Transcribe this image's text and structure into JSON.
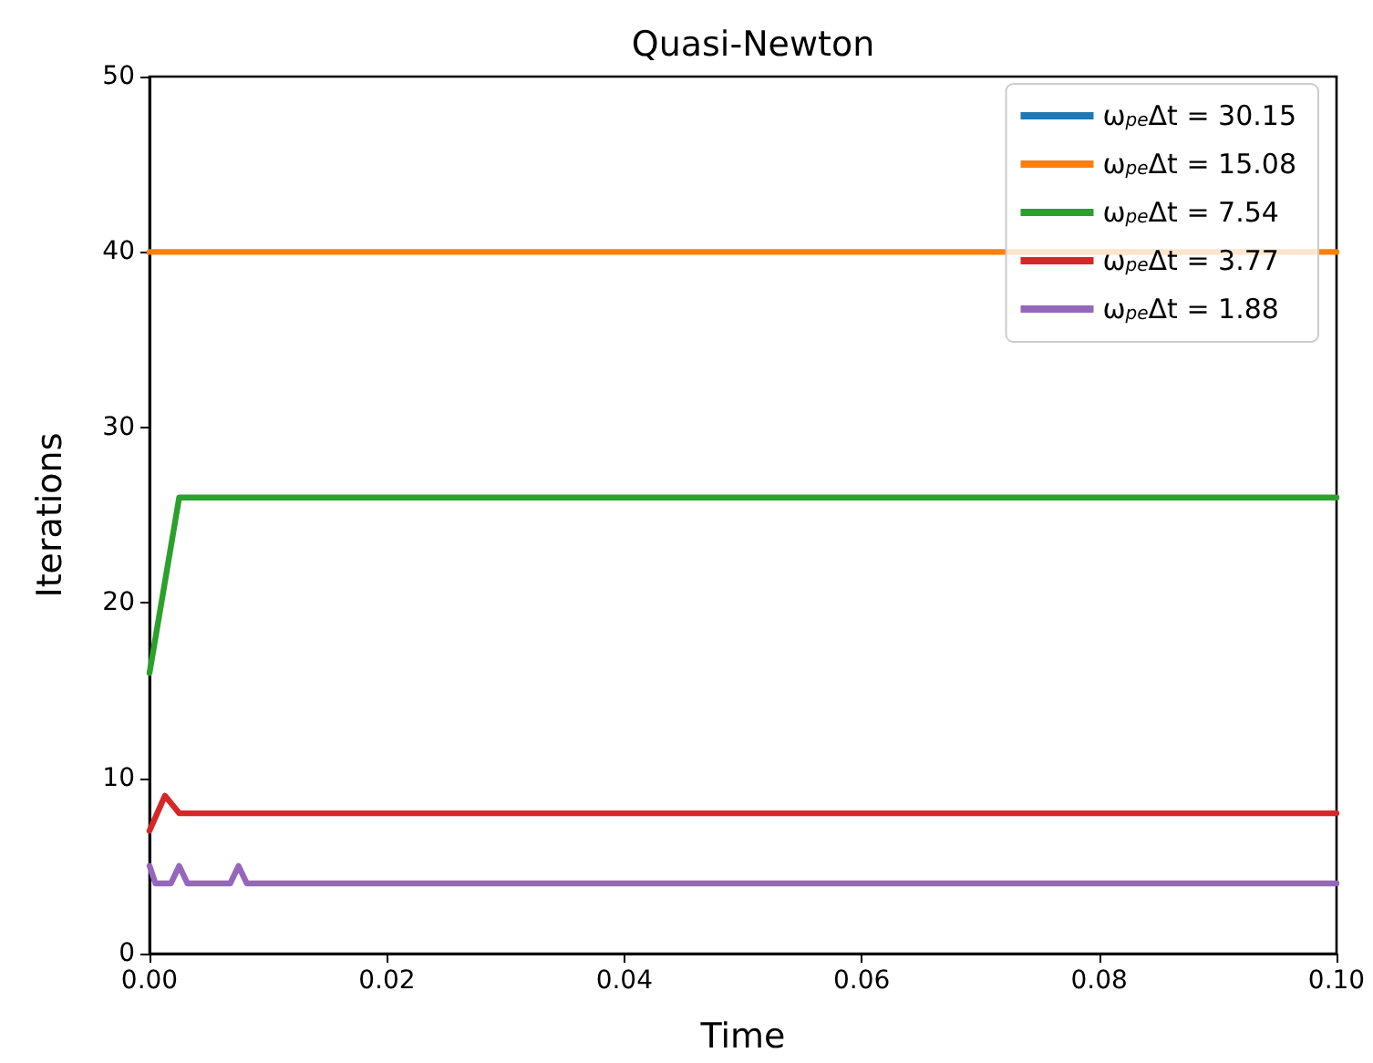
{
  "chart_data": {
    "type": "line",
    "title": "Quasi-Newton",
    "xlabel": "Time",
    "ylabel": "Iterations",
    "xlim": [
      0,
      0.1
    ],
    "xticks": [
      {
        "value": 0,
        "label": "0.00"
      },
      {
        "value": 0.02,
        "label": "0.02"
      },
      {
        "value": 0.04,
        "label": "0.04"
      },
      {
        "value": 0.06,
        "label": "0.06"
      },
      {
        "value": 0.08,
        "label": "0.08"
      },
      {
        "value": 0.1,
        "label": "0.10"
      }
    ],
    "ylim": [
      0,
      50
    ],
    "yticks": [
      0,
      10,
      20,
      30,
      40,
      50
    ],
    "grid": false,
    "legend": "top right",
    "marker": "none",
    "line_style": "solid",
    "series": [
      {
        "name": "ω$_{pe}$Δt = 30.15",
        "color": "#1f77b4"
      },
      {
        "name": "ω$_{pe}$Δt = 15.08",
        "color": "#ff7f0e",
        "x": [
          0,
          0.1
        ],
        "values": [
          40,
          40
        ]
      },
      {
        "name": "ω$_{pe}$Δt = 7.54",
        "color": "#2ca02c",
        "x": [
          0,
          0.0025,
          0.1
        ],
        "values": [
          16,
          26,
          26
        ]
      },
      {
        "name": "ω$_{pe}$Δt = 3.77",
        "color": "#d62728",
        "x": [
          0,
          0.0013,
          0.0025,
          0.1
        ],
        "values": [
          7,
          9,
          8,
          8
        ]
      },
      {
        "name": "ω$_{pe}$Δt = 1.88",
        "color": "#9467bd",
        "x": [
          0,
          0.0005,
          0.0018,
          0.0025,
          0.0032,
          0.0068,
          0.0075,
          0.0082,
          0.1
        ],
        "values": [
          5,
          4,
          4,
          5,
          4,
          4,
          5,
          4,
          4
        ]
      }
    ]
  }
}
